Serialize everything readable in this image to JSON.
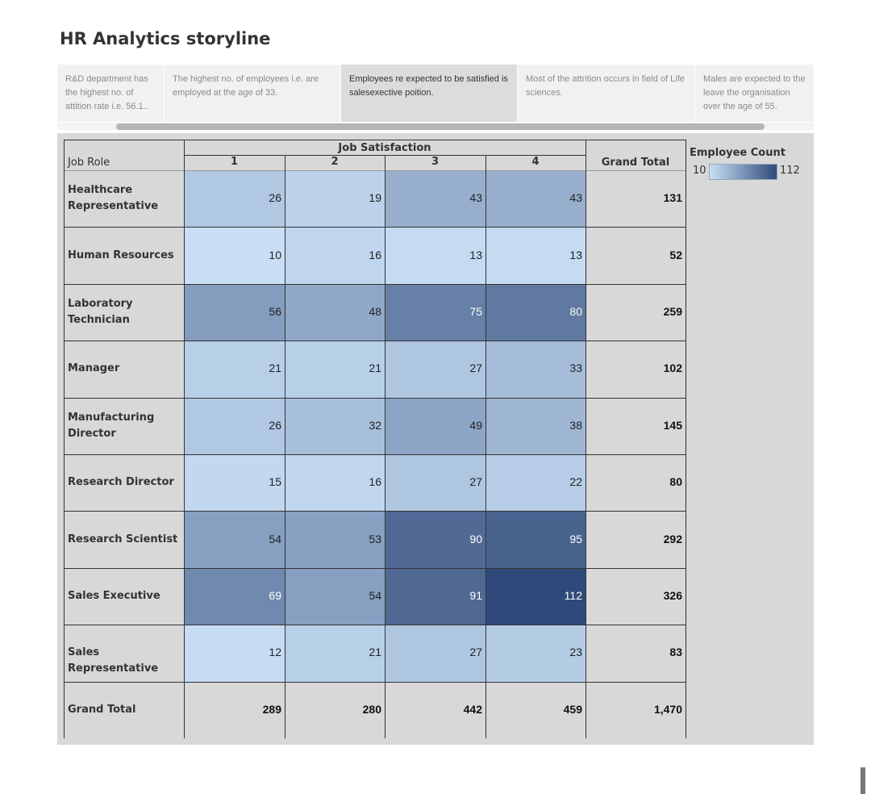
{
  "dashboard": {
    "title": "HR Analytics storyline"
  },
  "story_points": [
    "R&D department has the highest no. of attition rate i.e. 56.1..",
    "The highest no. of employees i.e. are employed at the age of 33.",
    "Employees re expected to be satisfied is salesexective poition.",
    "Most of the attrition occurs in field of Life sciences.",
    "Males are expected to the leave the organisation over the age of 55."
  ],
  "active_story_point": 2,
  "legend": {
    "title": "Employee Count",
    "min_label": "10",
    "max_label": "112"
  },
  "colors": {
    "low": "#c9dff5",
    "high": "#2f4a7a",
    "sheet_bg": "#d8d8d8",
    "total_bg": "#d6d6d6"
  },
  "chart_data": {
    "type": "heatmap",
    "row_header": "Job Role",
    "column_group_title": "Job Satisfaction",
    "columns": [
      "1",
      "2",
      "3",
      "4"
    ],
    "total_label": "Grand Total",
    "rows": [
      {
        "label": "Healthcare Representative",
        "values": [
          26,
          19,
          43,
          43
        ],
        "total": "131"
      },
      {
        "label": "Human Resources",
        "values": [
          10,
          16,
          13,
          13
        ],
        "total": "52"
      },
      {
        "label": "Laboratory Technician",
        "values": [
          56,
          48,
          75,
          80
        ],
        "total": "259"
      },
      {
        "label": "Manager",
        "values": [
          21,
          21,
          27,
          33
        ],
        "total": "102"
      },
      {
        "label": "Manufacturing Director",
        "values": [
          26,
          32,
          49,
          38
        ],
        "total": "145"
      },
      {
        "label": "Research Director",
        "values": [
          15,
          16,
          27,
          22
        ],
        "total": "80"
      },
      {
        "label": "Research Scientist",
        "values": [
          54,
          53,
          90,
          95
        ],
        "total": "292"
      },
      {
        "label": "Sales Executive",
        "values": [
          69,
          54,
          91,
          112
        ],
        "total": "326"
      },
      {
        "label": "Sales Representative",
        "values": [
          12,
          21,
          27,
          23
        ],
        "total": "83"
      }
    ],
    "grand_total_row": {
      "label": "Grand Total",
      "values": [
        "289",
        "280",
        "442",
        "459"
      ],
      "total": "1,470"
    },
    "color_range": [
      10,
      112
    ]
  }
}
